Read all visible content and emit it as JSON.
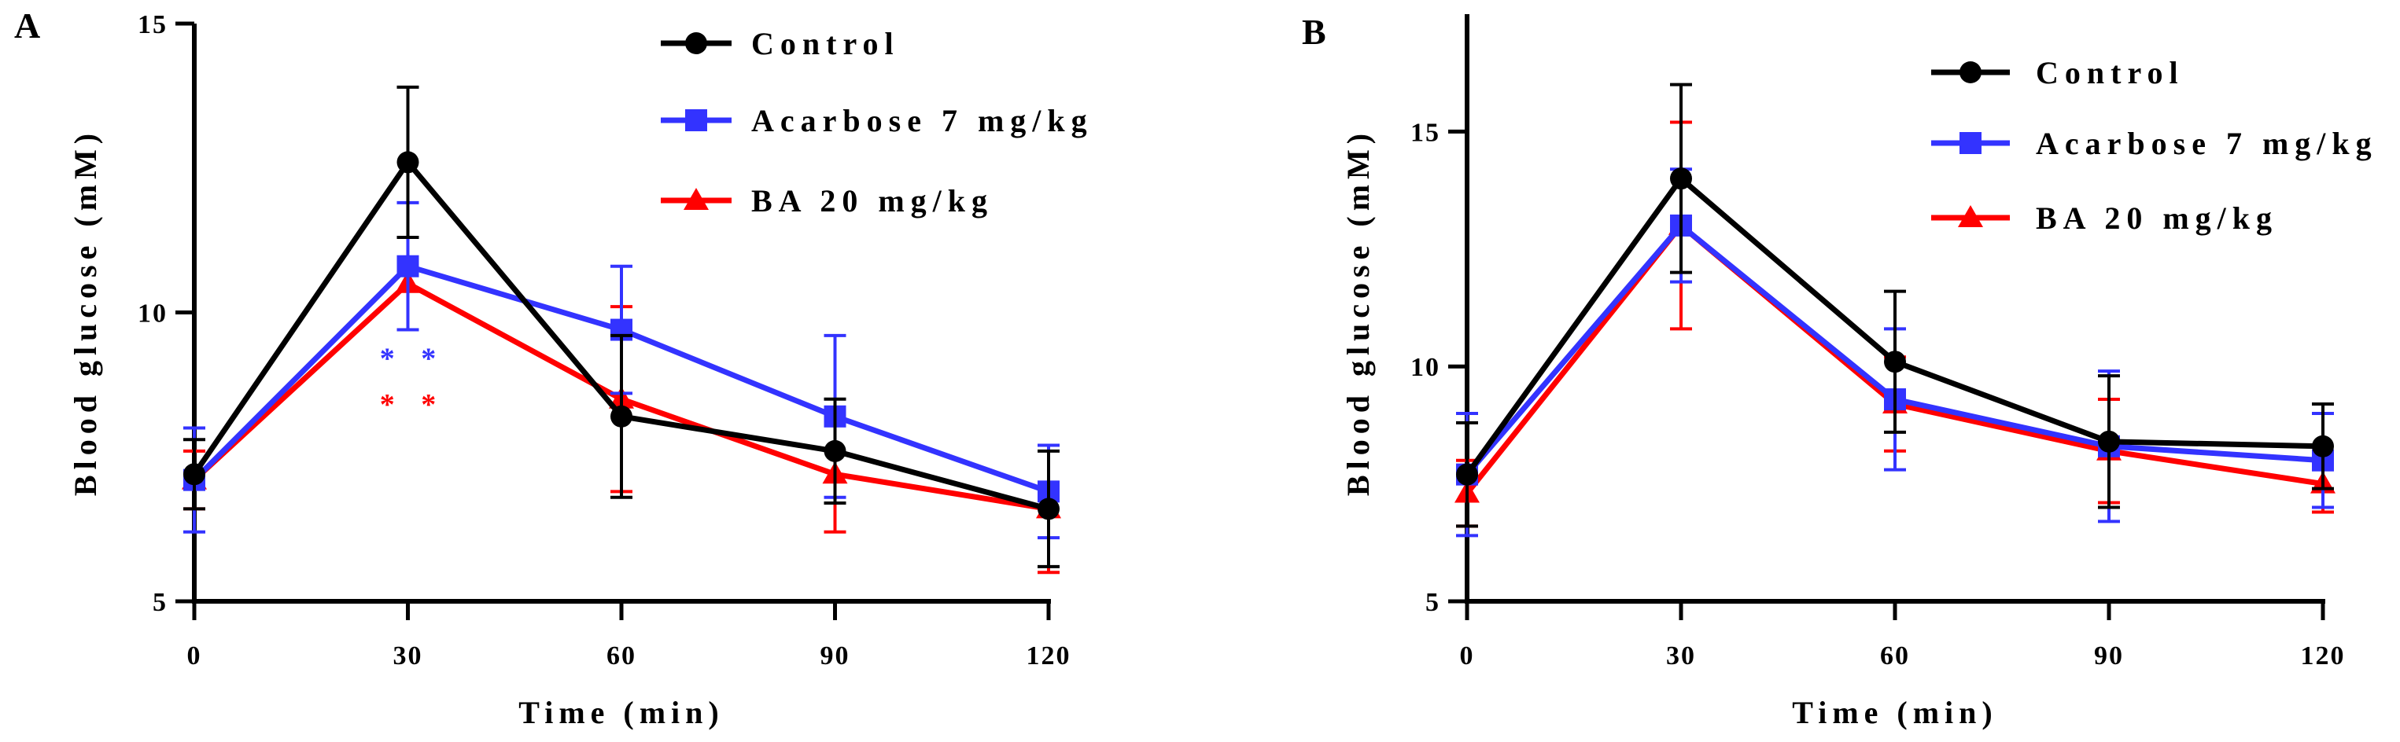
{
  "colors": {
    "control": "#000000",
    "acarbose": "#3333ff",
    "ba": "#ff0000",
    "axis": "#000000"
  },
  "chart_data": [
    {
      "panel": "A",
      "type": "line",
      "xlabel": "Time (min)",
      "ylabel": "Blood glucose (mM)",
      "x": [
        0,
        30,
        60,
        90,
        120
      ],
      "x_tick_labels": [
        "0",
        "30",
        "60",
        "90",
        "120"
      ],
      "xlim": [
        0,
        120
      ],
      "ylim": [
        5,
        15
      ],
      "y_ticks": [
        5,
        10,
        15
      ],
      "y_tick_labels": [
        "5",
        "10",
        "15"
      ],
      "grid": false,
      "legend_position": "top-right",
      "series": [
        {
          "name": "Control",
          "marker": "circle",
          "color": "#000000",
          "values": [
            7.2,
            12.6,
            8.2,
            7.6,
            6.6
          ],
          "errors": [
            0.6,
            1.3,
            1.4,
            0.9,
            1.0
          ]
        },
        {
          "name": "Acarbose 7 mg/kg",
          "marker": "square",
          "color": "#3333ff",
          "values": [
            7.1,
            10.8,
            9.7,
            8.2,
            6.9
          ],
          "errors": [
            0.9,
            1.1,
            1.1,
            1.4,
            0.8
          ]
        },
        {
          "name": "BA 20 mg/kg",
          "marker": "triangle",
          "color": "#ff0000",
          "values": [
            7.1,
            10.5,
            8.5,
            7.2,
            6.6
          ],
          "errors": [
            0.5,
            0.8,
            1.6,
            1.0,
            1.1
          ]
        }
      ],
      "annotations": [
        {
          "text": "* *",
          "x": 30,
          "y": 9.2,
          "color": "#3333ff"
        },
        {
          "text": "* *",
          "x": 30,
          "y": 8.4,
          "color": "#ff0000"
        }
      ]
    },
    {
      "panel": "B",
      "type": "line",
      "xlabel": "Time (min)",
      "ylabel": "Blood glucose (mM)",
      "x": [
        0,
        30,
        60,
        90,
        120
      ],
      "x_tick_labels": [
        "0",
        "30",
        "60",
        "90",
        "120"
      ],
      "xlim": [
        0,
        120
      ],
      "ylim": [
        5,
        17.5
      ],
      "y_ticks": [
        5,
        10,
        15
      ],
      "y_tick_labels": [
        "5",
        "10",
        "15"
      ],
      "grid": false,
      "legend_position": "top-right",
      "series": [
        {
          "name": "Control",
          "marker": "circle",
          "color": "#000000",
          "values": [
            7.7,
            14.0,
            10.1,
            8.4,
            8.3
          ],
          "errors": [
            1.1,
            2.0,
            1.5,
            1.4,
            0.9
          ]
        },
        {
          "name": "Acarbose 7 mg/kg",
          "marker": "square",
          "color": "#3333ff",
          "values": [
            7.7,
            13.0,
            9.3,
            8.3,
            8.0
          ],
          "errors": [
            1.3,
            1.2,
            1.5,
            1.6,
            1.0
          ]
        },
        {
          "name": "BA 20 mg/kg",
          "marker": "triangle",
          "color": "#ff0000",
          "values": [
            7.3,
            13.0,
            9.2,
            8.2,
            7.5
          ],
          "errors": [
            0.7,
            2.2,
            1.0,
            1.1,
            0.6
          ]
        }
      ],
      "annotations": []
    }
  ]
}
